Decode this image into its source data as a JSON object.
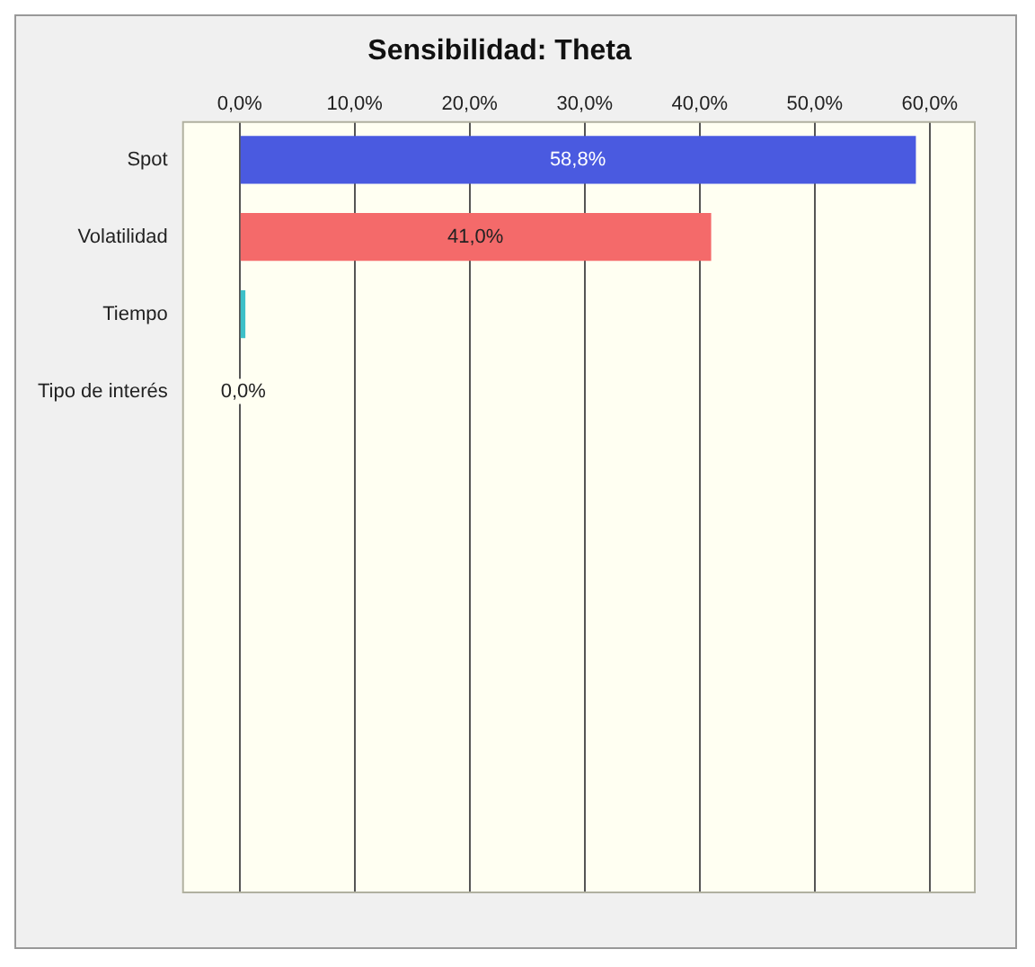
{
  "chart_data": {
    "type": "bar",
    "orientation": "horizontal",
    "title": "Sensibilidad: Theta",
    "categories": [
      "Spot",
      "Volatilidad",
      "Tiempo",
      "Tipo de interés",
      null,
      null,
      null,
      null,
      null,
      null
    ],
    "values": [
      58.8,
      41.0,
      0.5,
      0.0,
      null,
      null,
      null,
      null,
      null,
      null
    ],
    "colors": [
      "#4a5ae0",
      "#f46a6a",
      "#3cc0c8",
      "#3cc0c8",
      null,
      null,
      null,
      null,
      null,
      null
    ],
    "value_labels": [
      "58,8%",
      "41,0%",
      null,
      "0,0%",
      null,
      null,
      null,
      null,
      null,
      null
    ],
    "xlim": [
      -5,
      64
    ],
    "xticks": [
      {
        "value": 0,
        "label": "0,0%"
      },
      {
        "value": 10,
        "label": "10,0%"
      },
      {
        "value": 20,
        "label": "20,0%"
      },
      {
        "value": 30,
        "label": "30,0%"
      },
      {
        "value": 40,
        "label": "40,0%"
      },
      {
        "value": 50,
        "label": "50,0%"
      },
      {
        "value": 60,
        "label": "60,0%"
      }
    ],
    "grid": "x"
  }
}
